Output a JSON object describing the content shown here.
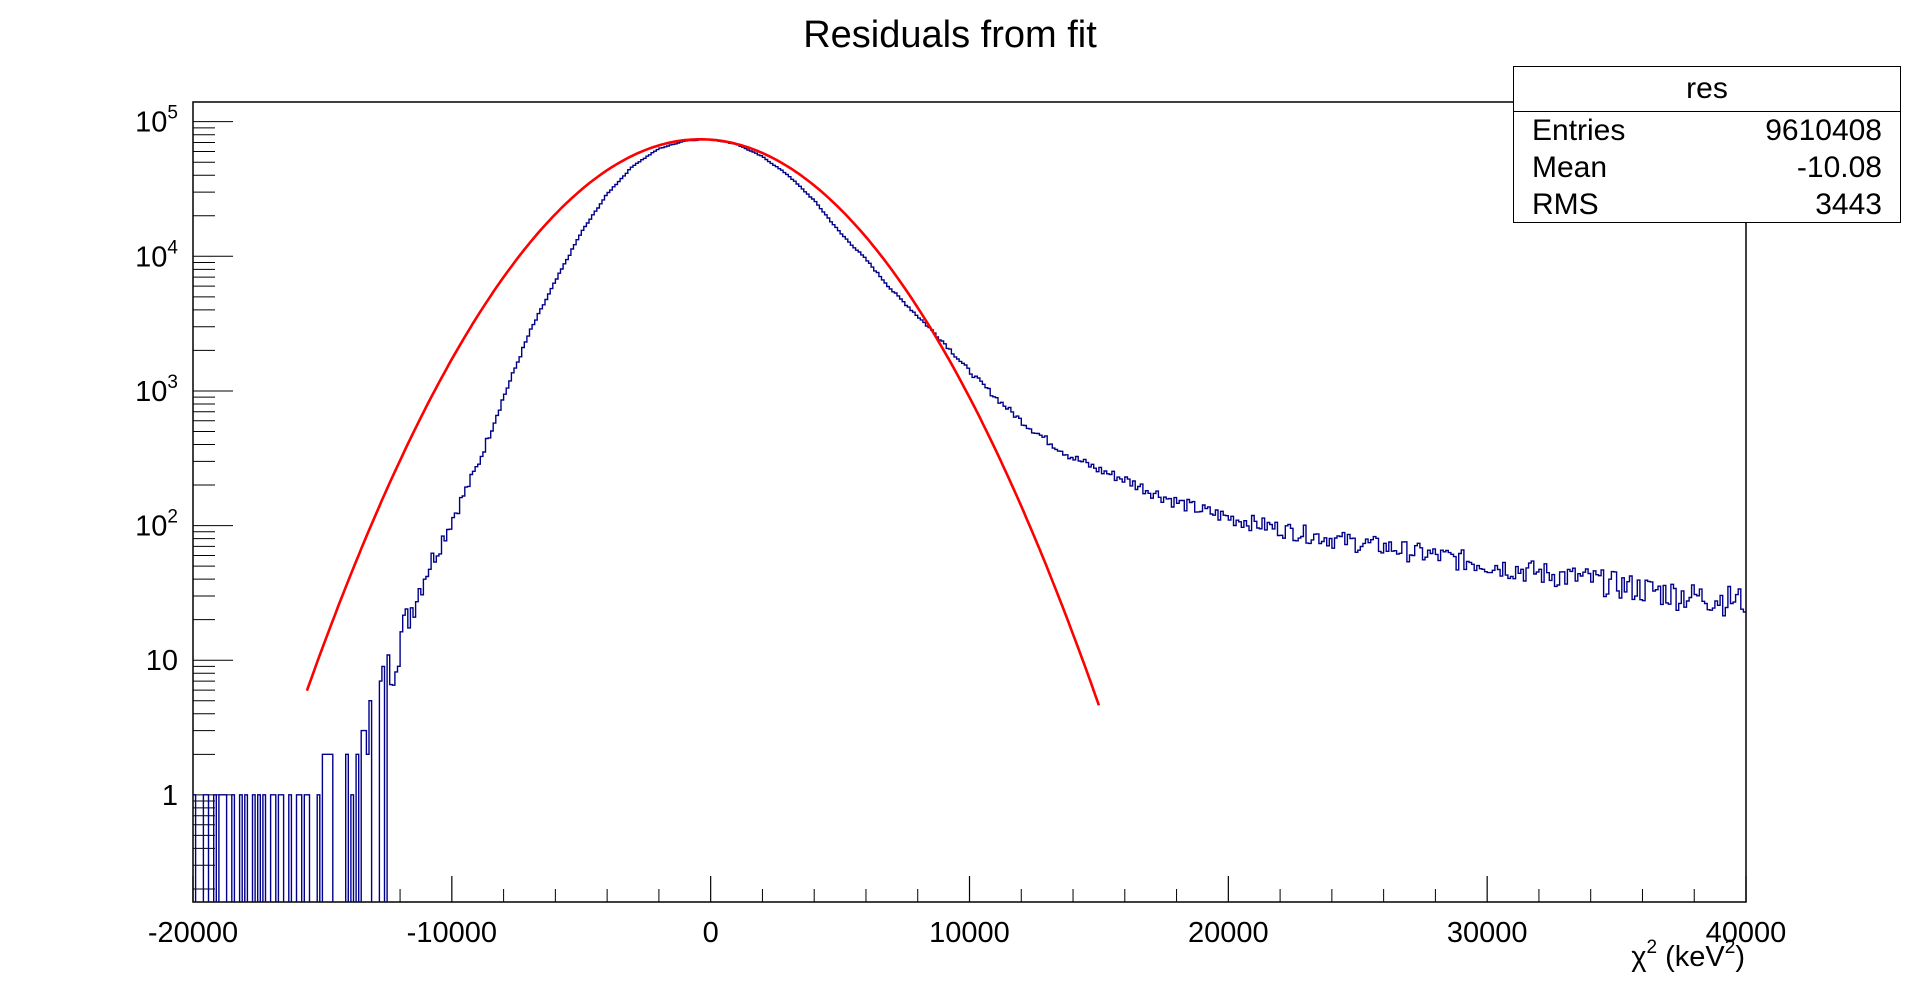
{
  "chart_data": {
    "type": "line",
    "title": "Residuals from fit",
    "xlabel": "χ² (keV²)",
    "xlabel_base": "χ",
    "xlabel_sup": "2",
    "xlabel_rest": " (keV",
    "xlabel_sup2": "2",
    "xlabel_end": ")",
    "ylabel": "",
    "xlim": [
      -20000,
      40000
    ],
    "ylim_log": [
      0.16,
      140000
    ],
    "yscale": "log",
    "x_ticks": [
      "-20000",
      "-10000",
      "0",
      "10000",
      "20000",
      "30000",
      "40000"
    ],
    "y_ticks": [
      {
        "value": 1,
        "base": "1",
        "sup": ""
      },
      {
        "value": 10,
        "base": "10",
        "sup": ""
      },
      {
        "value": 100,
        "base": "10",
        "sup": "2"
      },
      {
        "value": 1000,
        "base": "10",
        "sup": "3"
      },
      {
        "value": 10000,
        "base": "10",
        "sup": "4"
      },
      {
        "value": 100000,
        "base": "10",
        "sup": "5"
      }
    ],
    "colors": {
      "histogram": "#00008b",
      "fit": "#ff0000"
    },
    "series": [
      {
        "kind": "histogram",
        "color": "#00008b",
        "x": [
          -19000,
          -18000,
          -17000,
          -16000,
          -15000,
          -14000,
          -13000,
          -12000,
          -11000,
          -10000,
          -9000,
          -8000,
          -7000,
          -6000,
          -5000,
          -4000,
          -3000,
          -2000,
          -1000,
          0,
          1000,
          2000,
          3000,
          4000,
          5000,
          6000,
          7000,
          8000,
          9000,
          10000,
          11000,
          12000,
          13000,
          14000,
          15000,
          16000,
          17000,
          18000,
          19000,
          20000,
          22000,
          24000,
          26000,
          28000,
          30000,
          32000,
          34000,
          36000,
          38000,
          40000
        ],
        "values": [
          1,
          1,
          0.1,
          1,
          1.5,
          2,
          4,
          15,
          45,
          110,
          280,
          900,
          2700,
          6500,
          15000,
          29000,
          47000,
          63000,
          72000,
          74000,
          68000,
          55000,
          40000,
          26000,
          15000,
          9500,
          5600,
          3600,
          2300,
          1400,
          900,
          600,
          430,
          320,
          260,
          220,
          180,
          150,
          130,
          115,
          95,
          80,
          70,
          60,
          52,
          45,
          40,
          34,
          30,
          28
        ]
      },
      {
        "kind": "gaussian-fit",
        "color": "#ff0000",
        "amplitude": 74000,
        "mean": -400,
        "sigma": 3500,
        "x_range": [
          -15600,
          15000
        ]
      }
    ]
  },
  "stats": {
    "title": "res",
    "rows": [
      {
        "label": "Entries",
        "value": "9610408"
      },
      {
        "label": "Mean",
        "value": "-10.08"
      },
      {
        "label": "RMS",
        "value": "3443"
      }
    ]
  }
}
